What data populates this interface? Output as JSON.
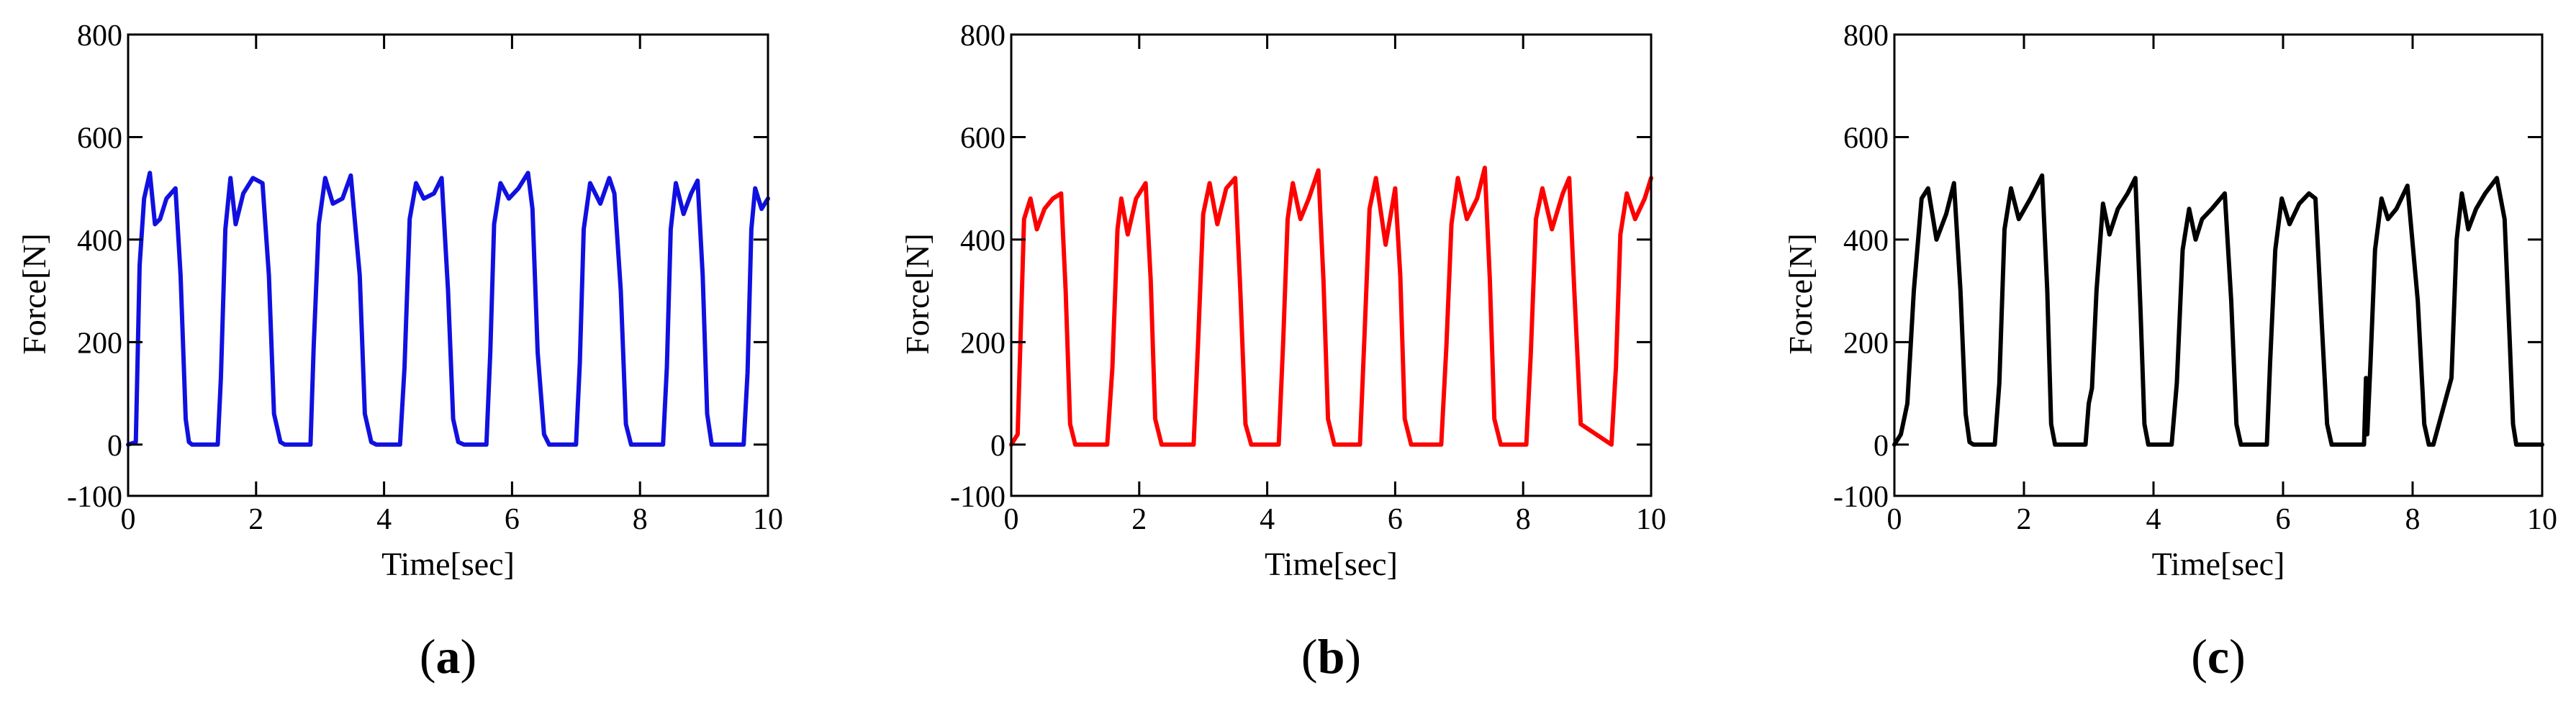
{
  "figure_title": "",
  "chart_data": [
    {
      "type": "line",
      "panel": "a",
      "panel_label": "a",
      "title": "",
      "xlabel": "Time[sec]",
      "ylabel": "Force[N]",
      "xlim": [
        0,
        10
      ],
      "ylim": [
        -100,
        800
      ],
      "xticks": [
        0,
        2,
        4,
        6,
        8,
        10
      ],
      "yticks": [
        -100,
        0,
        200,
        400,
        600,
        800
      ],
      "grid": false,
      "series": [
        {
          "name": "Force",
          "color": "#1010e0",
          "x": [
            0.0,
            0.12,
            0.18,
            0.25,
            0.34,
            0.42,
            0.5,
            0.6,
            0.74,
            0.82,
            0.9,
            0.95,
            1.0,
            1.4,
            1.45,
            1.52,
            1.6,
            1.68,
            1.8,
            1.95,
            2.1,
            2.2,
            2.28,
            2.38,
            2.45,
            2.85,
            2.9,
            2.98,
            3.08,
            3.2,
            3.35,
            3.48,
            3.62,
            3.7,
            3.8,
            3.88,
            4.25,
            4.32,
            4.4,
            4.5,
            4.62,
            4.78,
            4.9,
            5.0,
            5.08,
            5.16,
            5.25,
            5.6,
            5.66,
            5.72,
            5.82,
            5.95,
            6.1,
            6.25,
            6.32,
            6.4,
            6.5,
            6.58,
            7.0,
            7.06,
            7.12,
            7.22,
            7.38,
            7.52,
            7.6,
            7.7,
            7.78,
            7.86,
            8.36,
            8.42,
            8.48,
            8.56,
            8.68,
            8.8,
            8.9,
            8.98,
            9.05,
            9.12,
            9.62,
            9.68,
            9.74,
            9.8,
            9.9,
            10.0
          ],
          "values": [
            0,
            5,
            350,
            480,
            530,
            430,
            440,
            480,
            500,
            330,
            50,
            5,
            0,
            0,
            130,
            420,
            520,
            430,
            490,
            520,
            510,
            330,
            60,
            5,
            0,
            0,
            190,
            430,
            520,
            470,
            480,
            525,
            330,
            60,
            5,
            0,
            0,
            150,
            440,
            510,
            480,
            490,
            520,
            300,
            50,
            5,
            0,
            0,
            180,
            430,
            510,
            480,
            500,
            530,
            460,
            180,
            20,
            0,
            0,
            160,
            420,
            510,
            470,
            520,
            490,
            300,
            40,
            0,
            0,
            150,
            420,
            510,
            450,
            490,
            515,
            330,
            60,
            0,
            0,
            140,
            420,
            500,
            460,
            480
          ]
        }
      ]
    },
    {
      "type": "line",
      "panel": "b",
      "panel_label": "b",
      "title": "",
      "xlabel": "Time[sec]",
      "ylabel": "Force[N]",
      "xlim": [
        0,
        10
      ],
      "ylim": [
        -100,
        800
      ],
      "xticks": [
        0,
        2,
        4,
        6,
        8,
        10
      ],
      "yticks": [
        -100,
        0,
        200,
        400,
        600,
        800
      ],
      "grid": false,
      "series": [
        {
          "name": "Force",
          "color": "#ff0000",
          "x": [
            0.0,
            0.1,
            0.2,
            0.3,
            0.4,
            0.52,
            0.65,
            0.78,
            0.85,
            0.92,
            1.0,
            1.5,
            1.58,
            1.66,
            1.72,
            1.82,
            1.95,
            2.1,
            2.18,
            2.25,
            2.35,
            2.85,
            2.92,
            3.0,
            3.1,
            3.22,
            3.36,
            3.5,
            3.58,
            3.66,
            3.75,
            4.18,
            4.25,
            4.32,
            4.4,
            4.52,
            4.65,
            4.8,
            4.88,
            4.95,
            5.05,
            5.45,
            5.52,
            5.6,
            5.7,
            5.85,
            6.0,
            6.08,
            6.15,
            6.25,
            6.72,
            6.8,
            6.88,
            6.98,
            7.12,
            7.28,
            7.4,
            7.48,
            7.55,
            7.65,
            8.05,
            8.12,
            8.2,
            8.3,
            8.45,
            8.62,
            8.72,
            8.8,
            8.9,
            9.38,
            9.45,
            9.52,
            9.62,
            9.75,
            9.9,
            10.0
          ],
          "values": [
            0,
            20,
            440,
            480,
            420,
            460,
            480,
            490,
            300,
            40,
            0,
            0,
            150,
            420,
            480,
            410,
            480,
            510,
            320,
            50,
            0,
            0,
            200,
            450,
            510,
            430,
            500,
            520,
            300,
            40,
            0,
            0,
            200,
            440,
            510,
            440,
            480,
            535,
            320,
            50,
            0,
            0,
            210,
            460,
            520,
            390,
            500,
            330,
            50,
            0,
            0,
            190,
            430,
            520,
            440,
            480,
            540,
            320,
            50,
            0,
            0,
            180,
            440,
            500,
            420,
            490,
            520,
            300,
            40,
            0,
            150,
            410,
            490,
            440,
            480,
            520
          ]
        }
      ]
    },
    {
      "type": "line",
      "panel": "c",
      "panel_label": "c",
      "title": "",
      "xlabel": "Time[sec]",
      "ylabel": "Force[N]",
      "xlim": [
        0,
        10
      ],
      "ylim": [
        -100,
        800
      ],
      "xticks": [
        0,
        2,
        4,
        6,
        8,
        10
      ],
      "yticks": [
        -100,
        0,
        200,
        400,
        600,
        800
      ],
      "grid": false,
      "series": [
        {
          "name": "Force",
          "color": "#000000",
          "x": [
            0.0,
            0.1,
            0.2,
            0.3,
            0.42,
            0.52,
            0.65,
            0.8,
            0.92,
            1.02,
            1.1,
            1.16,
            1.22,
            1.55,
            1.62,
            1.7,
            1.8,
            1.92,
            2.1,
            2.28,
            2.36,
            2.42,
            2.48,
            2.95,
            3.0,
            3.05,
            3.12,
            3.22,
            3.32,
            3.45,
            3.6,
            3.72,
            3.8,
            3.86,
            3.92,
            4.28,
            4.36,
            4.45,
            4.55,
            4.65,
            4.75,
            4.9,
            5.1,
            5.2,
            5.28,
            5.35,
            5.75,
            5.8,
            5.88,
            5.98,
            6.1,
            6.25,
            6.4,
            6.5,
            6.6,
            6.68,
            6.75,
            7.25,
            7.28,
            7.3,
            7.35,
            7.42,
            7.52,
            7.62,
            7.75,
            7.92,
            8.08,
            8.18,
            8.25,
            8.32,
            8.6,
            8.68,
            8.76,
            8.86,
            8.98,
            9.12,
            9.3,
            9.42,
            9.5,
            9.55,
            9.6,
            9.7,
            10.0
          ],
          "values": [
            0,
            20,
            80,
            300,
            480,
            500,
            400,
            450,
            510,
            300,
            60,
            5,
            0,
            0,
            120,
            420,
            500,
            440,
            480,
            525,
            300,
            40,
            0,
            0,
            80,
            110,
            300,
            470,
            410,
            460,
            490,
            520,
            260,
            40,
            0,
            0,
            120,
            380,
            460,
            400,
            440,
            460,
            490,
            280,
            40,
            0,
            0,
            160,
            380,
            480,
            430,
            470,
            490,
            480,
            230,
            40,
            0,
            0,
            130,
            20,
            160,
            380,
            480,
            440,
            460,
            505,
            280,
            40,
            0,
            0,
            130,
            400,
            490,
            420,
            460,
            490,
            520,
            440,
            200,
            40,
            0,
            0,
            0
          ]
        }
      ]
    }
  ]
}
